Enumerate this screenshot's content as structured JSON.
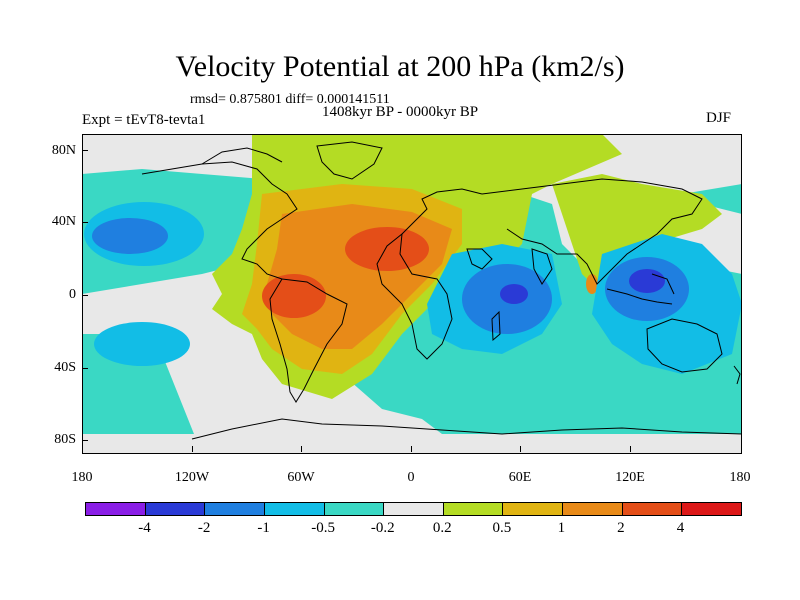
{
  "title": "Velocity Potential at 200 hPa (km2/s)",
  "stats": "rmsd= 0.875801 diff= 0.000141511",
  "period": "1408kyr BP - 0000kyr BP",
  "expt": "Expt = tEvT8-tevta1",
  "season": "DJF",
  "lat_labels": [
    "80N",
    "40N",
    "0",
    "40S",
    "80S"
  ],
  "lon_labels": [
    "180",
    "120W",
    "60W",
    "0",
    "60E",
    "120E",
    "180"
  ],
  "colorbar": {
    "colors": [
      "#8a1ee6",
      "#2a3ad6",
      "#1f7fe0",
      "#12bde6",
      "#3ad8c4",
      "#e8e8e8",
      "#b4dc24",
      "#e0b412",
      "#e88a18",
      "#e44e18",
      "#dc1818"
    ],
    "labels": [
      "-4",
      "-2",
      "-1",
      "-0.5",
      "-0.2",
      "0.2",
      "0.5",
      "1",
      "2",
      "4"
    ]
  }
}
